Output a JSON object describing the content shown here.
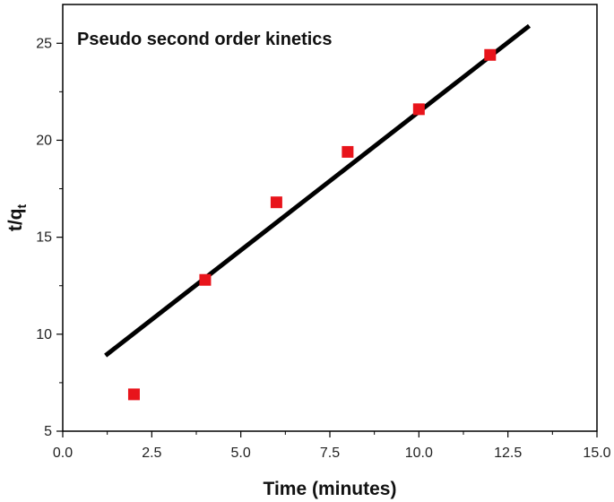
{
  "chart_data": {
    "type": "scatter",
    "title": "Pseudo second order kinetics",
    "xlabel": "Time (minutes)",
    "ylabel_main": "t/q",
    "ylabel_sub": "t",
    "xlim": [
      0,
      15
    ],
    "ylim": [
      5,
      27
    ],
    "x_ticks": [
      0.0,
      2.5,
      5.0,
      7.5,
      10.0,
      12.5,
      15.0
    ],
    "x_tick_labels": [
      "0.0",
      "2.5",
      "5.0",
      "7.5",
      "10.0",
      "12.5",
      "15.0"
    ],
    "y_ticks": [
      5,
      10,
      15,
      20,
      25
    ],
    "y_tick_labels": [
      "5",
      "10",
      "15",
      "20",
      "25"
    ],
    "grid": false,
    "series": [
      {
        "type": "scatter",
        "color": "#e8141b",
        "marker": "square",
        "x": [
          2,
          4,
          6,
          8,
          10,
          12
        ],
        "y": [
          6.9,
          12.8,
          16.8,
          19.4,
          21.6,
          24.4
        ]
      },
      {
        "type": "line",
        "color": "#000000",
        "x": [
          1.2,
          13.1
        ],
        "y": [
          8.9,
          25.9
        ]
      }
    ]
  }
}
